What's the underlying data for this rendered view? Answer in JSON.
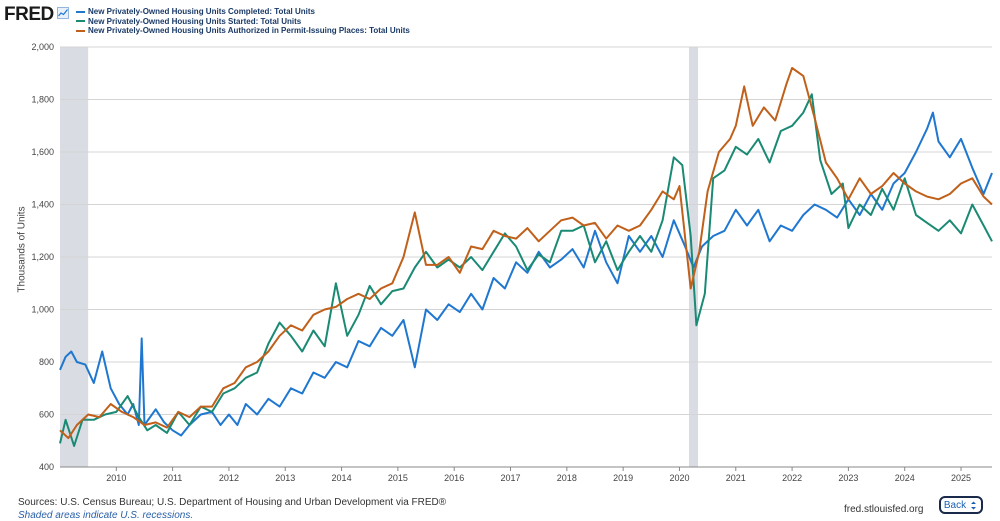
{
  "brand": {
    "logo_text": "FRED",
    "logo_icon": "chart-line-icon"
  },
  "chart_data": {
    "type": "line",
    "title": "",
    "xlabel": "",
    "ylabel": "Thousands of Units",
    "ylim": [
      400,
      2000
    ],
    "xlim": [
      2009.0,
      2025.55
    ],
    "yticks": [
      "400",
      "600",
      "800",
      "1,000",
      "1,200",
      "1,400",
      "1,600",
      "1,800",
      "2,000"
    ],
    "xticks": [
      "2010",
      "2011",
      "2012",
      "2013",
      "2014",
      "2015",
      "2016",
      "2017",
      "2018",
      "2019",
      "2020",
      "2021",
      "2022",
      "2023",
      "2024",
      "2025"
    ],
    "grid": true,
    "legend_position": "top-left",
    "recessions": [
      [
        2009.0,
        2009.5
      ],
      [
        2020.17,
        2020.33
      ]
    ],
    "series": [
      {
        "name": "New Privately-Owned Housing Units Completed: Total Units",
        "color": "#1f77d0",
        "points": [
          [
            2009.0,
            770
          ],
          [
            2009.1,
            820
          ],
          [
            2009.2,
            840
          ],
          [
            2009.3,
            800
          ],
          [
            2009.45,
            790
          ],
          [
            2009.6,
            720
          ],
          [
            2009.75,
            840
          ],
          [
            2009.9,
            700
          ],
          [
            2010.05,
            640
          ],
          [
            2010.2,
            600
          ],
          [
            2010.3,
            640
          ],
          [
            2010.4,
            560
          ],
          [
            2010.45,
            890
          ],
          [
            2010.5,
            560
          ],
          [
            2010.7,
            620
          ],
          [
            2010.85,
            570
          ],
          [
            2011.0,
            540
          ],
          [
            2011.15,
            520
          ],
          [
            2011.3,
            560
          ],
          [
            2011.5,
            600
          ],
          [
            2011.7,
            610
          ],
          [
            2011.85,
            560
          ],
          [
            2012.0,
            600
          ],
          [
            2012.15,
            560
          ],
          [
            2012.3,
            640
          ],
          [
            2012.5,
            600
          ],
          [
            2012.7,
            660
          ],
          [
            2012.9,
            630
          ],
          [
            2013.1,
            700
          ],
          [
            2013.3,
            680
          ],
          [
            2013.5,
            760
          ],
          [
            2013.7,
            740
          ],
          [
            2013.9,
            800
          ],
          [
            2014.1,
            780
          ],
          [
            2014.3,
            880
          ],
          [
            2014.5,
            860
          ],
          [
            2014.7,
            930
          ],
          [
            2014.9,
            900
          ],
          [
            2015.1,
            960
          ],
          [
            2015.3,
            780
          ],
          [
            2015.5,
            1000
          ],
          [
            2015.7,
            960
          ],
          [
            2015.9,
            1020
          ],
          [
            2016.1,
            990
          ],
          [
            2016.3,
            1060
          ],
          [
            2016.5,
            1000
          ],
          [
            2016.7,
            1120
          ],
          [
            2016.9,
            1080
          ],
          [
            2017.1,
            1180
          ],
          [
            2017.3,
            1140
          ],
          [
            2017.5,
            1220
          ],
          [
            2017.7,
            1160
          ],
          [
            2017.9,
            1190
          ],
          [
            2018.1,
            1230
          ],
          [
            2018.3,
            1160
          ],
          [
            2018.5,
            1300
          ],
          [
            2018.7,
            1180
          ],
          [
            2018.9,
            1100
          ],
          [
            2019.1,
            1280
          ],
          [
            2019.3,
            1220
          ],
          [
            2019.5,
            1280
          ],
          [
            2019.7,
            1200
          ],
          [
            2019.9,
            1340
          ],
          [
            2020.1,
            1240
          ],
          [
            2020.25,
            1160
          ],
          [
            2020.4,
            1240
          ],
          [
            2020.6,
            1280
          ],
          [
            2020.8,
            1300
          ],
          [
            2021.0,
            1380
          ],
          [
            2021.2,
            1320
          ],
          [
            2021.4,
            1380
          ],
          [
            2021.6,
            1260
          ],
          [
            2021.8,
            1320
          ],
          [
            2022.0,
            1300
          ],
          [
            2022.2,
            1360
          ],
          [
            2022.4,
            1400
          ],
          [
            2022.6,
            1380
          ],
          [
            2022.8,
            1350
          ],
          [
            2023.0,
            1420
          ],
          [
            2023.2,
            1360
          ],
          [
            2023.4,
            1440
          ],
          [
            2023.6,
            1380
          ],
          [
            2023.8,
            1480
          ],
          [
            2024.0,
            1520
          ],
          [
            2024.2,
            1600
          ],
          [
            2024.4,
            1690
          ],
          [
            2024.5,
            1750
          ],
          [
            2024.6,
            1640
          ],
          [
            2024.8,
            1580
          ],
          [
            2025.0,
            1650
          ],
          [
            2025.2,
            1540
          ],
          [
            2025.4,
            1440
          ],
          [
            2025.55,
            1520
          ]
        ]
      },
      {
        "name": "New Privately-Owned Housing Units Started: Total Units",
        "color": "#1a8a74",
        "points": [
          [
            2009.0,
            490
          ],
          [
            2009.1,
            580
          ],
          [
            2009.25,
            480
          ],
          [
            2009.4,
            580
          ],
          [
            2009.6,
            580
          ],
          [
            2009.8,
            600
          ],
          [
            2010.0,
            610
          ],
          [
            2010.2,
            670
          ],
          [
            2010.4,
            590
          ],
          [
            2010.55,
            540
          ],
          [
            2010.7,
            560
          ],
          [
            2010.9,
            530
          ],
          [
            2011.1,
            610
          ],
          [
            2011.3,
            560
          ],
          [
            2011.5,
            630
          ],
          [
            2011.7,
            610
          ],
          [
            2011.9,
            680
          ],
          [
            2012.1,
            700
          ],
          [
            2012.3,
            740
          ],
          [
            2012.5,
            760
          ],
          [
            2012.7,
            870
          ],
          [
            2012.9,
            950
          ],
          [
            2013.1,
            900
          ],
          [
            2013.3,
            840
          ],
          [
            2013.5,
            920
          ],
          [
            2013.7,
            860
          ],
          [
            2013.9,
            1100
          ],
          [
            2014.1,
            900
          ],
          [
            2014.3,
            980
          ],
          [
            2014.5,
            1090
          ],
          [
            2014.7,
            1020
          ],
          [
            2014.9,
            1070
          ],
          [
            2015.1,
            1080
          ],
          [
            2015.3,
            1160
          ],
          [
            2015.5,
            1220
          ],
          [
            2015.7,
            1160
          ],
          [
            2015.9,
            1190
          ],
          [
            2016.1,
            1160
          ],
          [
            2016.3,
            1200
          ],
          [
            2016.5,
            1150
          ],
          [
            2016.7,
            1220
          ],
          [
            2016.9,
            1290
          ],
          [
            2017.1,
            1240
          ],
          [
            2017.3,
            1150
          ],
          [
            2017.5,
            1210
          ],
          [
            2017.7,
            1180
          ],
          [
            2017.9,
            1300
          ],
          [
            2018.1,
            1300
          ],
          [
            2018.3,
            1320
          ],
          [
            2018.5,
            1180
          ],
          [
            2018.7,
            1260
          ],
          [
            2018.9,
            1150
          ],
          [
            2019.1,
            1220
          ],
          [
            2019.3,
            1280
          ],
          [
            2019.5,
            1220
          ],
          [
            2019.7,
            1340
          ],
          [
            2019.9,
            1580
          ],
          [
            2020.05,
            1550
          ],
          [
            2020.2,
            1280
          ],
          [
            2020.3,
            940
          ],
          [
            2020.45,
            1060
          ],
          [
            2020.6,
            1500
          ],
          [
            2020.8,
            1530
          ],
          [
            2021.0,
            1620
          ],
          [
            2021.2,
            1590
          ],
          [
            2021.4,
            1650
          ],
          [
            2021.6,
            1560
          ],
          [
            2021.8,
            1680
          ],
          [
            2022.0,
            1700
          ],
          [
            2022.2,
            1750
          ],
          [
            2022.35,
            1820
          ],
          [
            2022.5,
            1570
          ],
          [
            2022.7,
            1440
          ],
          [
            2022.9,
            1480
          ],
          [
            2023.0,
            1310
          ],
          [
            2023.2,
            1400
          ],
          [
            2023.4,
            1360
          ],
          [
            2023.6,
            1460
          ],
          [
            2023.8,
            1380
          ],
          [
            2024.0,
            1500
          ],
          [
            2024.2,
            1360
          ],
          [
            2024.4,
            1330
          ],
          [
            2024.6,
            1300
          ],
          [
            2024.8,
            1340
          ],
          [
            2025.0,
            1290
          ],
          [
            2025.2,
            1400
          ],
          [
            2025.4,
            1320
          ],
          [
            2025.55,
            1260
          ]
        ]
      },
      {
        "name": "New Privately-Owned Housing Units Authorized in Permit-Issuing Places: Total Units",
        "color": "#c0601a",
        "points": [
          [
            2009.0,
            540
          ],
          [
            2009.15,
            510
          ],
          [
            2009.3,
            560
          ],
          [
            2009.5,
            600
          ],
          [
            2009.7,
            590
          ],
          [
            2009.9,
            640
          ],
          [
            2010.1,
            610
          ],
          [
            2010.3,
            590
          ],
          [
            2010.5,
            560
          ],
          [
            2010.7,
            570
          ],
          [
            2010.9,
            550
          ],
          [
            2011.1,
            610
          ],
          [
            2011.3,
            590
          ],
          [
            2011.5,
            630
          ],
          [
            2011.7,
            630
          ],
          [
            2011.9,
            700
          ],
          [
            2012.1,
            720
          ],
          [
            2012.3,
            780
          ],
          [
            2012.5,
            800
          ],
          [
            2012.7,
            840
          ],
          [
            2012.9,
            900
          ],
          [
            2013.1,
            940
          ],
          [
            2013.3,
            920
          ],
          [
            2013.5,
            980
          ],
          [
            2013.7,
            1000
          ],
          [
            2013.9,
            1010
          ],
          [
            2014.1,
            1040
          ],
          [
            2014.3,
            1060
          ],
          [
            2014.5,
            1040
          ],
          [
            2014.7,
            1080
          ],
          [
            2014.9,
            1100
          ],
          [
            2015.1,
            1200
          ],
          [
            2015.3,
            1370
          ],
          [
            2015.5,
            1170
          ],
          [
            2015.7,
            1170
          ],
          [
            2015.9,
            1200
          ],
          [
            2016.1,
            1140
          ],
          [
            2016.3,
            1240
          ],
          [
            2016.5,
            1230
          ],
          [
            2016.7,
            1300
          ],
          [
            2016.9,
            1280
          ],
          [
            2017.1,
            1270
          ],
          [
            2017.3,
            1310
          ],
          [
            2017.5,
            1260
          ],
          [
            2017.7,
            1300
          ],
          [
            2017.9,
            1340
          ],
          [
            2018.1,
            1350
          ],
          [
            2018.3,
            1320
          ],
          [
            2018.5,
            1330
          ],
          [
            2018.7,
            1270
          ],
          [
            2018.9,
            1320
          ],
          [
            2019.1,
            1300
          ],
          [
            2019.3,
            1320
          ],
          [
            2019.5,
            1380
          ],
          [
            2019.7,
            1450
          ],
          [
            2019.9,
            1420
          ],
          [
            2020.0,
            1470
          ],
          [
            2020.2,
            1080
          ],
          [
            2020.35,
            1220
          ],
          [
            2020.5,
            1450
          ],
          [
            2020.7,
            1600
          ],
          [
            2020.9,
            1650
          ],
          [
            2021.0,
            1700
          ],
          [
            2021.15,
            1850
          ],
          [
            2021.3,
            1700
          ],
          [
            2021.5,
            1770
          ],
          [
            2021.7,
            1720
          ],
          [
            2021.9,
            1860
          ],
          [
            2022.0,
            1920
          ],
          [
            2022.2,
            1890
          ],
          [
            2022.4,
            1730
          ],
          [
            2022.6,
            1560
          ],
          [
            2022.8,
            1500
          ],
          [
            2023.0,
            1420
          ],
          [
            2023.2,
            1500
          ],
          [
            2023.4,
            1440
          ],
          [
            2023.6,
            1470
          ],
          [
            2023.8,
            1520
          ],
          [
            2024.0,
            1480
          ],
          [
            2024.2,
            1450
          ],
          [
            2024.4,
            1430
          ],
          [
            2024.6,
            1420
          ],
          [
            2024.8,
            1440
          ],
          [
            2025.0,
            1480
          ],
          [
            2025.2,
            1500
          ],
          [
            2025.4,
            1430
          ],
          [
            2025.55,
            1400
          ]
        ]
      }
    ]
  },
  "footer": {
    "sources": "Sources: U.S. Census Bureau; U.S. Department of Housing and Urban Development via FRED®",
    "note": "Shaded areas indicate U.S. recessions.",
    "url": "fred.stlouisfed.org"
  },
  "controls": {
    "back_label": "Back",
    "back_icon": "expand-arrows-icon"
  }
}
